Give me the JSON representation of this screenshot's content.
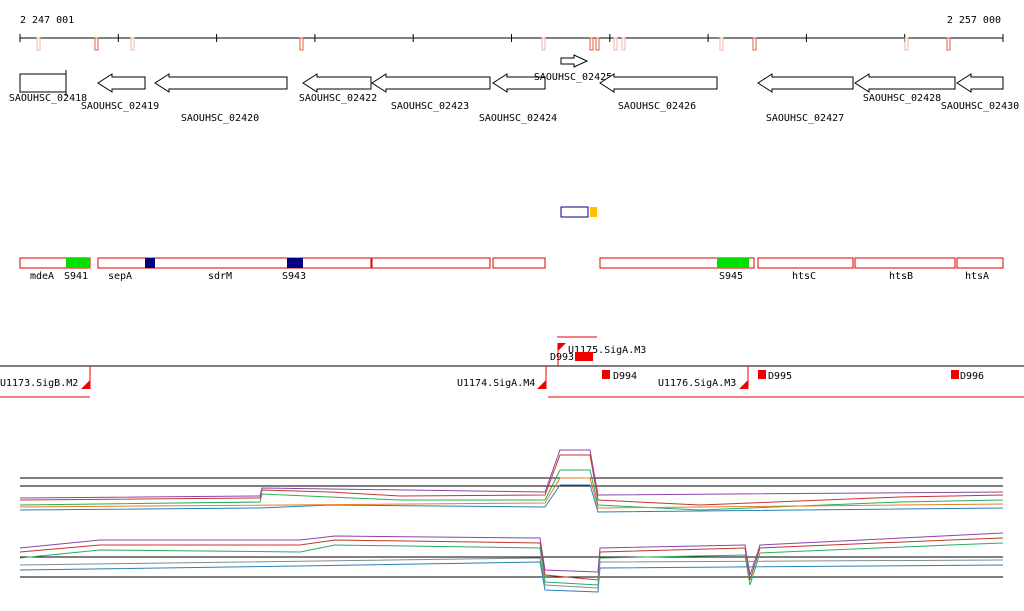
{
  "axis": {
    "start_label": "2 247 001",
    "end_label": "2 257 000"
  },
  "genes": [
    "SAOUHSC_02418",
    "SAOUHSC_02419",
    "SAOUHSC_02420",
    "SAOUHSC_02422",
    "SAOUHSC_02423",
    "SAOUHSC_02424",
    "SAOUHSC_02425",
    "SAOUHSC_02426",
    "SAOUHSC_02427",
    "SAOUHSC_02428",
    "SAOUHSC_02430"
  ],
  "features": [
    "mdeA",
    "S941",
    "sepA",
    "sdrM",
    "S943",
    "S945",
    "htsC",
    "htsB",
    "htsA"
  ],
  "promoters": [
    "U1173.SigB.M2",
    "U1174.SigA.M4",
    "U1175.SigA.M3",
    "U1176.SigA.M3"
  ],
  "terminators": [
    "D993",
    "D994",
    "D995",
    "D996"
  ]
}
